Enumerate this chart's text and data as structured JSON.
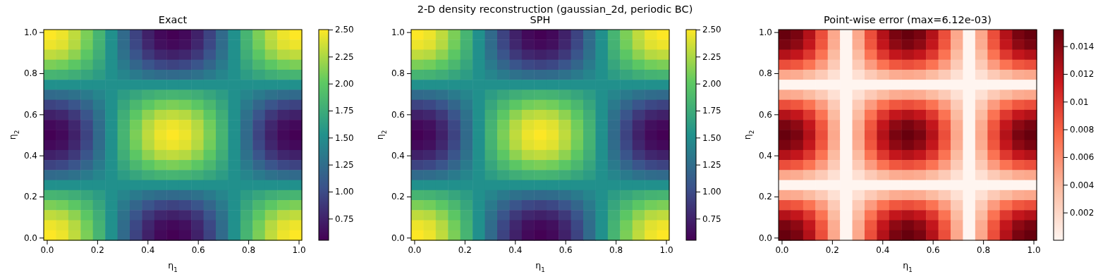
{
  "chart_data": [
    {
      "type": "heatmap",
      "title": "Exact",
      "xlabel": "η$_{1}$",
      "ylabel": "η$_{2}$",
      "annotations": [
        "2-D density reconstruction  (gaussian_2d, periodic BC)"
      ],
      "xlim": [
        -0.0125,
        1.0125
      ],
      "ylim": [
        -0.0125,
        1.0125
      ],
      "xticks": [
        {
          "value": 0,
          "label": "0.0"
        },
        {
          "value": 0.2,
          "label": "0.2"
        },
        {
          "value": 0.4,
          "label": "0.4"
        },
        {
          "value": 0.6,
          "label": "0.6"
        },
        {
          "value": 0.8,
          "label": "0.8"
        },
        {
          "value": 1,
          "label": "1.0"
        }
      ],
      "yticks": [
        {
          "value": 0,
          "label": "0.0"
        },
        {
          "value": 0.2,
          "label": "0.2"
        },
        {
          "value": 0.4,
          "label": "0.4"
        },
        {
          "value": 0.6,
          "label": "0.6"
        },
        {
          "value": 0.8,
          "label": "0.8"
        },
        {
          "value": 1,
          "label": "1.0"
        }
      ],
      "clim": [
        0.55,
        2.5
      ],
      "cticks": [
        {
          "value": 0.75,
          "label": "0.75"
        },
        {
          "value": 1,
          "label": "1.00"
        },
        {
          "value": 1.25,
          "label": "1.25"
        },
        {
          "value": 1.5,
          "label": "1.50"
        },
        {
          "value": 1.75,
          "label": "1.75"
        },
        {
          "value": 2,
          "label": "2.00"
        },
        {
          "value": 2.25,
          "label": "2.25"
        },
        {
          "value": 2.5,
          "label": "2.50"
        }
      ],
      "colors": [
        "#440154",
        "#3b528b",
        "#21918c",
        "#5ec962",
        "#fde725"
      ],
      "cells": [
        [
          2.5,
          2.45,
          2.31,
          2.1,
          1.83,
          1.52,
          1.22,
          0.95,
          0.74,
          0.6,
          0.55,
          0.6,
          0.74,
          0.95,
          1.22,
          1.52,
          1.83,
          2.1,
          2.31,
          2.45,
          2.5
        ],
        [
          2.45,
          2.41,
          2.28,
          2.07,
          1.81,
          1.52,
          1.24,
          0.98,
          0.78,
          0.64,
          0.6,
          0.64,
          0.78,
          0.98,
          1.24,
          1.52,
          1.81,
          2.07,
          2.28,
          2.41,
          2.45
        ],
        [
          2.31,
          2.28,
          2.16,
          1.99,
          1.77,
          1.52,
          1.28,
          1.06,
          0.89,
          0.78,
          0.74,
          0.78,
          0.89,
          1.06,
          1.28,
          1.52,
          1.77,
          1.99,
          2.16,
          2.28,
          2.31
        ],
        [
          2.1,
          2.07,
          1.99,
          1.86,
          1.7,
          1.52,
          1.35,
          1.19,
          1.06,
          0.98,
          0.95,
          0.98,
          1.06,
          1.19,
          1.35,
          1.52,
          1.7,
          1.86,
          1.99,
          2.07,
          2.1
        ],
        [
          1.83,
          1.81,
          1.77,
          1.7,
          1.62,
          1.52,
          1.43,
          1.35,
          1.28,
          1.24,
          1.22,
          1.24,
          1.28,
          1.35,
          1.43,
          1.52,
          1.62,
          1.7,
          1.77,
          1.81,
          1.83
        ],
        [
          1.52,
          1.52,
          1.52,
          1.52,
          1.52,
          1.52,
          1.52,
          1.52,
          1.52,
          1.52,
          1.52,
          1.52,
          1.52,
          1.52,
          1.52,
          1.52,
          1.52,
          1.52,
          1.52,
          1.52,
          1.52
        ],
        [
          1.22,
          1.24,
          1.28,
          1.35,
          1.43,
          1.52,
          1.62,
          1.7,
          1.77,
          1.81,
          1.83,
          1.81,
          1.77,
          1.7,
          1.62,
          1.52,
          1.43,
          1.35,
          1.28,
          1.24,
          1.22
        ],
        [
          0.95,
          0.98,
          1.06,
          1.19,
          1.35,
          1.52,
          1.7,
          1.86,
          1.99,
          2.07,
          2.1,
          2.07,
          1.99,
          1.86,
          1.7,
          1.52,
          1.35,
          1.19,
          1.06,
          0.98,
          0.95
        ],
        [
          0.74,
          0.78,
          0.89,
          1.06,
          1.28,
          1.52,
          1.77,
          1.99,
          2.16,
          2.28,
          2.31,
          2.28,
          2.16,
          1.99,
          1.77,
          1.52,
          1.28,
          1.06,
          0.89,
          0.78,
          0.74
        ],
        [
          0.6,
          0.64,
          0.78,
          0.98,
          1.24,
          1.52,
          1.81,
          2.07,
          2.28,
          2.41,
          2.45,
          2.41,
          2.28,
          2.07,
          1.81,
          1.52,
          1.24,
          0.98,
          0.78,
          0.64,
          0.6
        ],
        [
          0.55,
          0.6,
          0.74,
          0.95,
          1.22,
          1.52,
          1.83,
          2.1,
          2.31,
          2.45,
          2.5,
          2.45,
          2.31,
          2.1,
          1.83,
          1.52,
          1.22,
          0.95,
          0.74,
          0.6,
          0.55
        ],
        [
          0.6,
          0.64,
          0.78,
          0.98,
          1.24,
          1.52,
          1.81,
          2.07,
          2.28,
          2.41,
          2.45,
          2.41,
          2.28,
          2.07,
          1.81,
          1.52,
          1.24,
          0.98,
          0.78,
          0.64,
          0.6
        ],
        [
          0.74,
          0.78,
          0.89,
          1.06,
          1.28,
          1.52,
          1.77,
          1.99,
          2.16,
          2.28,
          2.31,
          2.28,
          2.16,
          1.99,
          1.77,
          1.52,
          1.28,
          1.06,
          0.89,
          0.78,
          0.74
        ],
        [
          0.95,
          0.98,
          1.06,
          1.19,
          1.35,
          1.52,
          1.7,
          1.86,
          1.99,
          2.07,
          2.1,
          2.07,
          1.99,
          1.86,
          1.7,
          1.52,
          1.35,
          1.19,
          1.06,
          0.98,
          0.95
        ],
        [
          1.22,
          1.24,
          1.28,
          1.35,
          1.43,
          1.52,
          1.62,
          1.7,
          1.77,
          1.81,
          1.83,
          1.81,
          1.77,
          1.7,
          1.62,
          1.52,
          1.43,
          1.35,
          1.28,
          1.24,
          1.22
        ],
        [
          1.52,
          1.52,
          1.52,
          1.52,
          1.52,
          1.52,
          1.52,
          1.52,
          1.52,
          1.52,
          1.52,
          1.52,
          1.52,
          1.52,
          1.52,
          1.52,
          1.52,
          1.52,
          1.52,
          1.52,
          1.52
        ],
        [
          1.83,
          1.81,
          1.77,
          1.7,
          1.62,
          1.52,
          1.43,
          1.35,
          1.28,
          1.24,
          1.22,
          1.24,
          1.28,
          1.35,
          1.43,
          1.52,
          1.62,
          1.7,
          1.77,
          1.81,
          1.83
        ],
        [
          2.1,
          2.07,
          1.99,
          1.86,
          1.7,
          1.52,
          1.35,
          1.19,
          1.06,
          0.98,
          0.95,
          0.98,
          1.06,
          1.19,
          1.35,
          1.52,
          1.7,
          1.86,
          1.99,
          2.07,
          2.1
        ],
        [
          2.31,
          2.28,
          2.16,
          1.99,
          1.77,
          1.52,
          1.28,
          1.06,
          0.89,
          0.78,
          0.74,
          0.78,
          0.89,
          1.06,
          1.28,
          1.52,
          1.77,
          1.99,
          2.16,
          2.28,
          2.31
        ],
        [
          2.45,
          2.41,
          2.28,
          2.07,
          1.81,
          1.52,
          1.24,
          0.98,
          0.78,
          0.64,
          0.6,
          0.64,
          0.78,
          0.98,
          1.24,
          1.52,
          1.81,
          2.07,
          2.28,
          2.41,
          2.45
        ],
        [
          2.5,
          2.45,
          2.31,
          2.1,
          1.83,
          1.52,
          1.22,
          0.95,
          0.74,
          0.6,
          0.55,
          0.6,
          0.74,
          0.95,
          1.22,
          1.52,
          1.83,
          2.1,
          2.31,
          2.45,
          2.5
        ]
      ]
    },
    {
      "type": "heatmap",
      "title": "SPH",
      "xlabel": "η$_{1}$",
      "ylabel": "η$_{2}$",
      "xlim": [
        -0.0125,
        1.0125
      ],
      "ylim": [
        -0.0125,
        1.0125
      ],
      "xticks": [
        {
          "value": 0,
          "label": "0.0"
        },
        {
          "value": 0.2,
          "label": "0.2"
        },
        {
          "value": 0.4,
          "label": "0.4"
        },
        {
          "value": 0.6,
          "label": "0.6"
        },
        {
          "value": 0.8,
          "label": "0.8"
        },
        {
          "value": 1,
          "label": "1.0"
        }
      ],
      "yticks": [
        {
          "value": 0,
          "label": "0.0"
        },
        {
          "value": 0.2,
          "label": "0.2"
        },
        {
          "value": 0.4,
          "label": "0.4"
        },
        {
          "value": 0.6,
          "label": "0.6"
        },
        {
          "value": 0.8,
          "label": "0.8"
        },
        {
          "value": 1,
          "label": "1.0"
        }
      ],
      "clim": [
        0.55,
        2.5
      ],
      "cticks": [
        {
          "value": 0.75,
          "label": "0.75"
        },
        {
          "value": 1,
          "label": "1.00"
        },
        {
          "value": 1.25,
          "label": "1.25"
        },
        {
          "value": 1.5,
          "label": "1.50"
        },
        {
          "value": 1.75,
          "label": "1.75"
        },
        {
          "value": 2,
          "label": "2.00"
        },
        {
          "value": 2.25,
          "label": "2.25"
        },
        {
          "value": 2.5,
          "label": "2.50"
        }
      ],
      "colors": [
        "#440154",
        "#3b528b",
        "#21918c",
        "#5ec962",
        "#fde725"
      ],
      "cells": [
        [
          2.5,
          2.45,
          2.31,
          2.1,
          1.83,
          1.52,
          1.22,
          0.95,
          0.74,
          0.6,
          0.55,
          0.6,
          0.74,
          0.95,
          1.22,
          1.52,
          1.83,
          2.1,
          2.31,
          2.45,
          2.5
        ],
        [
          2.45,
          2.41,
          2.28,
          2.07,
          1.81,
          1.52,
          1.24,
          0.98,
          0.78,
          0.64,
          0.6,
          0.64,
          0.78,
          0.98,
          1.24,
          1.52,
          1.81,
          2.07,
          2.28,
          2.41,
          2.45
        ],
        [
          2.31,
          2.28,
          2.16,
          1.99,
          1.77,
          1.52,
          1.28,
          1.06,
          0.89,
          0.78,
          0.74,
          0.78,
          0.89,
          1.06,
          1.28,
          1.52,
          1.77,
          1.99,
          2.16,
          2.28,
          2.31
        ],
        [
          2.1,
          2.07,
          1.99,
          1.86,
          1.7,
          1.52,
          1.35,
          1.19,
          1.06,
          0.98,
          0.95,
          0.98,
          1.06,
          1.19,
          1.35,
          1.52,
          1.7,
          1.86,
          1.99,
          2.07,
          2.1
        ],
        [
          1.83,
          1.81,
          1.77,
          1.7,
          1.62,
          1.52,
          1.43,
          1.35,
          1.28,
          1.24,
          1.22,
          1.24,
          1.28,
          1.35,
          1.43,
          1.52,
          1.62,
          1.7,
          1.77,
          1.81,
          1.83
        ],
        [
          1.52,
          1.52,
          1.52,
          1.52,
          1.52,
          1.52,
          1.52,
          1.52,
          1.52,
          1.52,
          1.52,
          1.52,
          1.52,
          1.52,
          1.52,
          1.52,
          1.52,
          1.52,
          1.52,
          1.52,
          1.52
        ],
        [
          1.22,
          1.24,
          1.28,
          1.35,
          1.43,
          1.52,
          1.62,
          1.7,
          1.77,
          1.81,
          1.83,
          1.81,
          1.77,
          1.7,
          1.62,
          1.52,
          1.43,
          1.35,
          1.28,
          1.24,
          1.22
        ],
        [
          0.95,
          0.98,
          1.06,
          1.19,
          1.35,
          1.52,
          1.7,
          1.86,
          1.99,
          2.07,
          2.1,
          2.07,
          1.99,
          1.86,
          1.7,
          1.52,
          1.35,
          1.19,
          1.06,
          0.98,
          0.95
        ],
        [
          0.74,
          0.78,
          0.89,
          1.06,
          1.28,
          1.52,
          1.77,
          1.99,
          2.16,
          2.28,
          2.31,
          2.28,
          2.16,
          1.99,
          1.77,
          1.52,
          1.28,
          1.06,
          0.89,
          0.78,
          0.74
        ],
        [
          0.6,
          0.64,
          0.78,
          0.98,
          1.24,
          1.52,
          1.81,
          2.07,
          2.28,
          2.41,
          2.45,
          2.41,
          2.28,
          2.07,
          1.81,
          1.52,
          1.24,
          0.98,
          0.78,
          0.64,
          0.6
        ],
        [
          0.55,
          0.6,
          0.74,
          0.95,
          1.22,
          1.52,
          1.83,
          2.1,
          2.31,
          2.45,
          2.5,
          2.45,
          2.31,
          2.1,
          1.83,
          1.52,
          1.22,
          0.95,
          0.74,
          0.6,
          0.55
        ],
        [
          0.6,
          0.64,
          0.78,
          0.98,
          1.24,
          1.52,
          1.81,
          2.07,
          2.28,
          2.41,
          2.45,
          2.41,
          2.28,
          2.07,
          1.81,
          1.52,
          1.24,
          0.98,
          0.78,
          0.64,
          0.6
        ],
        [
          0.74,
          0.78,
          0.89,
          1.06,
          1.28,
          1.52,
          1.77,
          1.99,
          2.16,
          2.28,
          2.31,
          2.28,
          2.16,
          1.99,
          1.77,
          1.52,
          1.28,
          1.06,
          0.89,
          0.78,
          0.74
        ],
        [
          0.95,
          0.98,
          1.06,
          1.19,
          1.35,
          1.52,
          1.7,
          1.86,
          1.99,
          2.07,
          2.1,
          2.07,
          1.99,
          1.86,
          1.7,
          1.52,
          1.35,
          1.19,
          1.06,
          0.98,
          0.95
        ],
        [
          1.22,
          1.24,
          1.28,
          1.35,
          1.43,
          1.52,
          1.62,
          1.7,
          1.77,
          1.81,
          1.83,
          1.81,
          1.77,
          1.7,
          1.62,
          1.52,
          1.43,
          1.35,
          1.28,
          1.24,
          1.22
        ],
        [
          1.52,
          1.52,
          1.52,
          1.52,
          1.52,
          1.52,
          1.52,
          1.52,
          1.52,
          1.52,
          1.52,
          1.52,
          1.52,
          1.52,
          1.52,
          1.52,
          1.52,
          1.52,
          1.52,
          1.52,
          1.52
        ],
        [
          1.83,
          1.81,
          1.77,
          1.7,
          1.62,
          1.52,
          1.43,
          1.35,
          1.28,
          1.24,
          1.22,
          1.24,
          1.28,
          1.35,
          1.43,
          1.52,
          1.62,
          1.7,
          1.77,
          1.81,
          1.83
        ],
        [
          2.1,
          2.07,
          1.99,
          1.86,
          1.7,
          1.52,
          1.35,
          1.19,
          1.06,
          0.98,
          0.95,
          0.98,
          1.06,
          1.19,
          1.35,
          1.52,
          1.7,
          1.86,
          1.99,
          2.07,
          2.1
        ],
        [
          2.31,
          2.28,
          2.16,
          1.99,
          1.77,
          1.52,
          1.28,
          1.06,
          0.89,
          0.78,
          0.74,
          0.78,
          0.89,
          1.06,
          1.28,
          1.52,
          1.77,
          1.99,
          2.16,
          2.28,
          2.31
        ],
        [
          2.45,
          2.41,
          2.28,
          2.07,
          1.81,
          1.52,
          1.24,
          0.98,
          0.78,
          0.64,
          0.6,
          0.64,
          0.78,
          0.98,
          1.24,
          1.52,
          1.81,
          2.07,
          2.28,
          2.41,
          2.45
        ],
        [
          2.5,
          2.45,
          2.31,
          2.1,
          1.83,
          1.52,
          1.22,
          0.95,
          0.74,
          0.6,
          0.55,
          0.6,
          0.74,
          0.95,
          1.22,
          1.52,
          1.83,
          2.1,
          2.31,
          2.45,
          2.5
        ]
      ]
    },
    {
      "type": "heatmap",
      "title": "Point-wise error  (max=6.12e-03)",
      "xlabel": "η$_{1}$",
      "ylabel": "η$_{2}$",
      "xlim": [
        -0.0125,
        1.0125
      ],
      "ylim": [
        -0.0125,
        1.0125
      ],
      "xticks": [
        {
          "value": 0,
          "label": "0.0"
        },
        {
          "value": 0.2,
          "label": "0.2"
        },
        {
          "value": 0.4,
          "label": "0.4"
        },
        {
          "value": 0.6,
          "label": "0.6"
        },
        {
          "value": 0.8,
          "label": "0.8"
        },
        {
          "value": 1,
          "label": "1.0"
        }
      ],
      "yticks": [
        {
          "value": 0,
          "label": "0.0"
        },
        {
          "value": 0.2,
          "label": "0.2"
        },
        {
          "value": 0.4,
          "label": "0.4"
        },
        {
          "value": 0.6,
          "label": "0.6"
        },
        {
          "value": 0.8,
          "label": "0.8"
        },
        {
          "value": 1,
          "label": "1.0"
        }
      ],
      "clim": [
        0,
        0.0152
      ],
      "cticks": [
        0.002,
        0.004,
        0.006,
        0.008,
        0.01,
        0.012,
        0.014
      ],
      "colors": [
        "#fff5f0",
        "#fcbba1",
        "#fb6a4a",
        "#cb181d",
        "#67000d"
      ],
      "cells": [
        [
          0.0152,
          0.0145,
          0.0123,
          0.0089,
          0.0047,
          0,
          0.0047,
          0.0089,
          0.0123,
          0.0145,
          0.0152,
          0.0145,
          0.0123,
          0.0089,
          0.0047,
          0,
          0.0047,
          0.0089,
          0.0123,
          0.0145,
          0.0152
        ],
        [
          0.0145,
          0.0137,
          0.0117,
          0.0085,
          0.0045,
          0,
          0.0045,
          0.0085,
          0.0117,
          0.0137,
          0.0145,
          0.0137,
          0.0117,
          0.0085,
          0.0045,
          0,
          0.0045,
          0.0085,
          0.0117,
          0.0137,
          0.0145
        ],
        [
          0.0123,
          0.0117,
          0.0099,
          0.0072,
          0.0038,
          0,
          0.0038,
          0.0072,
          0.0099,
          0.0117,
          0.0123,
          0.0117,
          0.0099,
          0.0072,
          0.0038,
          0,
          0.0038,
          0.0072,
          0.0099,
          0.0117,
          0.0123
        ],
        [
          0.0089,
          0.0085,
          0.0072,
          0.0053,
          0.0028,
          0,
          0.0028,
          0.0053,
          0.0072,
          0.0085,
          0.0089,
          0.0085,
          0.0072,
          0.0053,
          0.0028,
          0,
          0.0028,
          0.0053,
          0.0072,
          0.0085,
          0.0089
        ],
        [
          0.0047,
          0.0045,
          0.0038,
          0.0028,
          0.0014,
          0,
          0.0014,
          0.0028,
          0.0038,
          0.0045,
          0.0047,
          0.0045,
          0.0038,
          0.0028,
          0.0014,
          0,
          0.0014,
          0.0028,
          0.0038,
          0.0045,
          0.0047
        ],
        [
          0,
          0,
          0,
          0,
          0,
          0,
          0,
          0,
          0,
          0,
          0,
          0,
          0,
          0,
          0,
          0,
          0,
          0,
          0,
          0,
          0
        ],
        [
          0.0047,
          0.0045,
          0.0038,
          0.0028,
          0.0014,
          0,
          0.0014,
          0.0028,
          0.0038,
          0.0045,
          0.0047,
          0.0045,
          0.0038,
          0.0028,
          0.0014,
          0,
          0.0014,
          0.0028,
          0.0038,
          0.0045,
          0.0047
        ],
        [
          0.0089,
          0.0085,
          0.0072,
          0.0053,
          0.0028,
          0,
          0.0028,
          0.0053,
          0.0072,
          0.0085,
          0.0089,
          0.0085,
          0.0072,
          0.0053,
          0.0028,
          0,
          0.0028,
          0.0053,
          0.0072,
          0.0085,
          0.0089
        ],
        [
          0.0123,
          0.0117,
          0.0099,
          0.0072,
          0.0038,
          0,
          0.0038,
          0.0072,
          0.0099,
          0.0117,
          0.0123,
          0.0117,
          0.0099,
          0.0072,
          0.0038,
          0,
          0.0038,
          0.0072,
          0.0099,
          0.0117,
          0.0123
        ],
        [
          0.0145,
          0.0137,
          0.0117,
          0.0085,
          0.0045,
          0,
          0.0045,
          0.0085,
          0.0117,
          0.0137,
          0.0145,
          0.0137,
          0.0117,
          0.0085,
          0.0045,
          0,
          0.0045,
          0.0085,
          0.0117,
          0.0137,
          0.0145
        ],
        [
          0.0152,
          0.0145,
          0.0123,
          0.0089,
          0.0047,
          0,
          0.0047,
          0.0089,
          0.0123,
          0.0145,
          0.0152,
          0.0145,
          0.0123,
          0.0089,
          0.0047,
          0,
          0.0047,
          0.0089,
          0.0123,
          0.0145,
          0.0152
        ],
        [
          0.0145,
          0.0137,
          0.0117,
          0.0085,
          0.0045,
          0,
          0.0045,
          0.0085,
          0.0117,
          0.0137,
          0.0145,
          0.0137,
          0.0117,
          0.0085,
          0.0045,
          0,
          0.0045,
          0.0085,
          0.0117,
          0.0137,
          0.0145
        ],
        [
          0.0123,
          0.0117,
          0.0099,
          0.0072,
          0.0038,
          0,
          0.0038,
          0.0072,
          0.0099,
          0.0117,
          0.0123,
          0.0117,
          0.0099,
          0.0072,
          0.0038,
          0,
          0.0038,
          0.0072,
          0.0099,
          0.0117,
          0.0123
        ],
        [
          0.0089,
          0.0085,
          0.0072,
          0.0053,
          0.0028,
          0,
          0.0028,
          0.0053,
          0.0072,
          0.0085,
          0.0089,
          0.0085,
          0.0072,
          0.0053,
          0.0028,
          0,
          0.0028,
          0.0053,
          0.0072,
          0.0085,
          0.0089
        ],
        [
          0.0047,
          0.0045,
          0.0038,
          0.0028,
          0.0014,
          0,
          0.0014,
          0.0028,
          0.0038,
          0.0045,
          0.0047,
          0.0045,
          0.0038,
          0.0028,
          0.0014,
          0,
          0.0014,
          0.0028,
          0.0038,
          0.0045,
          0.0047
        ],
        [
          0,
          0,
          0,
          0,
          0,
          0,
          0,
          0,
          0,
          0,
          0,
          0,
          0,
          0,
          0,
          0,
          0,
          0,
          0,
          0,
          0
        ],
        [
          0.0047,
          0.0045,
          0.0038,
          0.0028,
          0.0014,
          0,
          0.0014,
          0.0028,
          0.0038,
          0.0045,
          0.0047,
          0.0045,
          0.0038,
          0.0028,
          0.0014,
          0,
          0.0014,
          0.0028,
          0.0038,
          0.0045,
          0.0047
        ],
        [
          0.0089,
          0.0085,
          0.0072,
          0.0053,
          0.0028,
          0,
          0.0028,
          0.0053,
          0.0072,
          0.0085,
          0.0089,
          0.0085,
          0.0072,
          0.0053,
          0.0028,
          0,
          0.0028,
          0.0053,
          0.0072,
          0.0085,
          0.0089
        ],
        [
          0.0123,
          0.0117,
          0.0099,
          0.0072,
          0.0038,
          0,
          0.0038,
          0.0072,
          0.0099,
          0.0117,
          0.0123,
          0.0117,
          0.0099,
          0.0072,
          0.0038,
          0,
          0.0038,
          0.0072,
          0.0099,
          0.0117,
          0.0123
        ],
        [
          0.0145,
          0.0137,
          0.0117,
          0.0085,
          0.0045,
          0,
          0.0045,
          0.0085,
          0.0117,
          0.0137,
          0.0145,
          0.0137,
          0.0117,
          0.0085,
          0.0045,
          0,
          0.0045,
          0.0085,
          0.0117,
          0.0137,
          0.0145
        ],
        [
          0.0152,
          0.0145,
          0.0123,
          0.0089,
          0.0047,
          0,
          0.0047,
          0.0089,
          0.0123,
          0.0145,
          0.0152,
          0.0145,
          0.0123,
          0.0089,
          0.0047,
          0,
          0.0047,
          0.0089,
          0.0123,
          0.0145,
          0.0152
        ]
      ]
    }
  ]
}
